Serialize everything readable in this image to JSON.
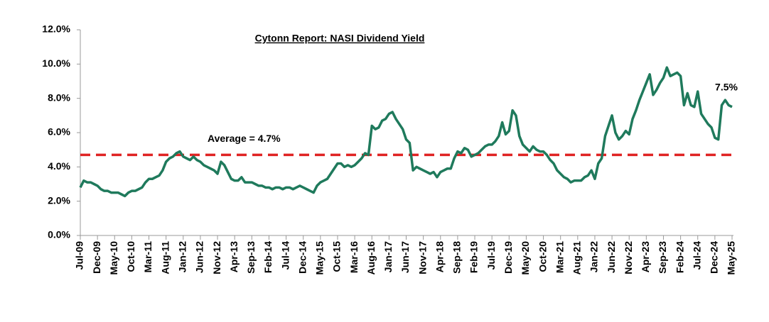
{
  "chart_data": {
    "type": "line",
    "title": "Cytonn Report: NASI Dividend Yield",
    "categories": [
      "Jul-09",
      null,
      null,
      null,
      null,
      "Dec-09",
      null,
      null,
      null,
      null,
      "May-10",
      null,
      null,
      null,
      null,
      "Oct-10",
      null,
      null,
      null,
      null,
      "Mar-11",
      null,
      null,
      null,
      null,
      "Aug-11",
      null,
      null,
      null,
      null,
      "Jan-12",
      null,
      null,
      null,
      null,
      "Jun-12",
      null,
      null,
      null,
      null,
      "Nov-12",
      null,
      null,
      null,
      null,
      "Apr-13",
      null,
      null,
      null,
      null,
      "Sep-13",
      null,
      null,
      null,
      null,
      "Feb-14",
      null,
      null,
      null,
      null,
      "Jul-14",
      null,
      null,
      null,
      null,
      "Dec-14",
      null,
      null,
      null,
      null,
      "May-15",
      null,
      null,
      null,
      null,
      "Oct-15",
      null,
      null,
      null,
      null,
      "Mar-16",
      null,
      null,
      null,
      null,
      "Aug-16",
      null,
      null,
      null,
      null,
      "Jan-17",
      null,
      null,
      null,
      null,
      "Jun-17",
      null,
      null,
      null,
      null,
      "Nov-17",
      null,
      null,
      null,
      null,
      "Apr-18",
      null,
      null,
      null,
      null,
      "Sep-18",
      null,
      null,
      null,
      null,
      "Feb-19",
      null,
      null,
      null,
      null,
      "Jul-19",
      null,
      null,
      null,
      null,
      "Dec-19",
      null,
      null,
      null,
      null,
      "May-20",
      null,
      null,
      null,
      null,
      "Oct-20",
      null,
      null,
      null,
      null,
      "Mar-21",
      null,
      null,
      null,
      null,
      "Aug-21",
      null,
      null,
      null,
      null,
      "Jan-22",
      null,
      null,
      null,
      null,
      "Jun-22",
      null,
      null,
      null,
      null,
      "Nov-22",
      null,
      null,
      null,
      null,
      "Apr-23",
      null,
      null,
      null,
      null,
      "Sep-23",
      null,
      null,
      null,
      null,
      "Feb-24",
      null,
      null,
      null,
      null,
      "Jul-24",
      null,
      null,
      null,
      null,
      "Dec-24",
      null,
      null,
      null,
      null,
      "May-25"
    ],
    "series": [
      {
        "name": "NASI Dividend Yield",
        "color": "#1f7a5c",
        "values": [
          2.8,
          3.2,
          3.1,
          3.1,
          3.0,
          2.9,
          2.7,
          2.6,
          2.6,
          2.5,
          2.5,
          2.5,
          2.4,
          2.3,
          2.5,
          2.6,
          2.6,
          2.7,
          2.8,
          3.1,
          3.3,
          3.3,
          3.4,
          3.5,
          3.8,
          4.3,
          4.5,
          4.6,
          4.8,
          4.9,
          4.6,
          4.5,
          4.4,
          4.6,
          4.4,
          4.3,
          4.1,
          4.0,
          3.9,
          3.8,
          3.6,
          4.3,
          4.1,
          3.7,
          3.3,
          3.2,
          3.2,
          3.4,
          3.1,
          3.1,
          3.1,
          3.0,
          2.9,
          2.9,
          2.8,
          2.8,
          2.7,
          2.8,
          2.8,
          2.7,
          2.8,
          2.8,
          2.7,
          2.8,
          2.9,
          2.8,
          2.7,
          2.6,
          2.5,
          2.9,
          3.1,
          3.2,
          3.3,
          3.6,
          3.9,
          4.2,
          4.2,
          4.0,
          4.1,
          4.0,
          4.1,
          4.3,
          4.5,
          4.8,
          4.7,
          6.4,
          6.2,
          6.3,
          6.7,
          6.8,
          7.1,
          7.2,
          6.8,
          6.5,
          6.2,
          5.6,
          5.4,
          3.8,
          4.0,
          3.9,
          3.8,
          3.7,
          3.6,
          3.7,
          3.4,
          3.7,
          3.8,
          3.9,
          3.9,
          4.5,
          4.9,
          4.8,
          5.1,
          5.0,
          4.6,
          4.7,
          4.8,
          5.0,
          5.2,
          5.3,
          5.3,
          5.5,
          5.8,
          6.6,
          5.9,
          6.1,
          7.3,
          7.0,
          5.8,
          5.3,
          5.1,
          4.9,
          5.2,
          5.0,
          4.9,
          4.9,
          4.7,
          4.4,
          4.2,
          3.8,
          3.6,
          3.4,
          3.3,
          3.1,
          3.2,
          3.2,
          3.2,
          3.4,
          3.5,
          3.8,
          3.3,
          4.2,
          4.5,
          5.8,
          6.4,
          7.0,
          6.0,
          5.6,
          5.8,
          6.1,
          5.9,
          6.8,
          7.3,
          7.9,
          8.4,
          8.9,
          9.4,
          8.2,
          8.5,
          8.9,
          9.2,
          9.8,
          9.3,
          9.4,
          9.5,
          9.3,
          7.6,
          8.3,
          7.6,
          7.5,
          8.4,
          7.1,
          6.8,
          6.5,
          6.3,
          5.7,
          5.6,
          7.6,
          7.9,
          7.6,
          7.5
        ],
        "value_labels": [
          null,
          null,
          null,
          null,
          null,
          null,
          null,
          null,
          null,
          null,
          null,
          null,
          null,
          null,
          null,
          null,
          null,
          null,
          null,
          null,
          null,
          null,
          null,
          null,
          null,
          null,
          null,
          null,
          null,
          null,
          null,
          null,
          null,
          null,
          null,
          null,
          null,
          null,
          null,
          null,
          null,
          null,
          null,
          null,
          null,
          null,
          null,
          null,
          null,
          null,
          null,
          null,
          null,
          null,
          null,
          null,
          null,
          null,
          null,
          null,
          null,
          null,
          null,
          null,
          null,
          null,
          null,
          null,
          null,
          null,
          null,
          null,
          null,
          null,
          null,
          null,
          null,
          null,
          null,
          null,
          null,
          null,
          null,
          null,
          null,
          null,
          null,
          null,
          null,
          null,
          null,
          null,
          null,
          null,
          null,
          null,
          null,
          null,
          null,
          null,
          null,
          null,
          null,
          null,
          null,
          null,
          null,
          null,
          null,
          null,
          null,
          null,
          null,
          null,
          null,
          null,
          null,
          null,
          null,
          null,
          null,
          null,
          null,
          null,
          null,
          null,
          null,
          null,
          null,
          null,
          null,
          null,
          null,
          null,
          null,
          null,
          null,
          null,
          null,
          null,
          null,
          null,
          null,
          null,
          null,
          null,
          null,
          null,
          null,
          null,
          null,
          null,
          null,
          null,
          null,
          null,
          null,
          null,
          null,
          null,
          null,
          null,
          null,
          null,
          null,
          null,
          null,
          null,
          null,
          null,
          null,
          null,
          null,
          null,
          null,
          null,
          null,
          null,
          null,
          null,
          null,
          null,
          null,
          null,
          null,
          null,
          null,
          null,
          null,
          null,
          "7.5%"
        ]
      }
    ],
    "average": {
      "value": 4.7,
      "label": "Average = 4.7%",
      "color": "#e02424"
    },
    "ylim": [
      0,
      12
    ],
    "yticks": [
      {
        "value": 0,
        "label": "0.0%"
      },
      {
        "value": 2,
        "label": "2.0%"
      },
      {
        "value": 4,
        "label": "4.0%"
      },
      {
        "value": 6,
        "label": "6.0%"
      },
      {
        "value": 8,
        "label": "8.0%"
      },
      {
        "value": 10,
        "label": "10.0%"
      },
      {
        "value": 12,
        "label": "12.0%"
      }
    ],
    "grid": false
  }
}
